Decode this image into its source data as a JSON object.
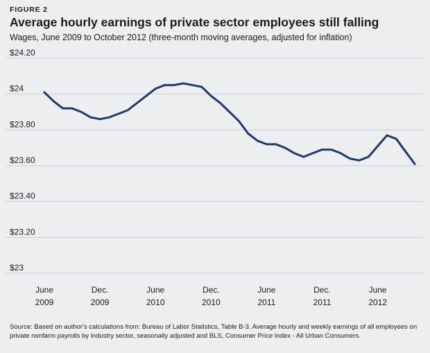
{
  "figure": {
    "label": "FIGURE 2",
    "source_note": "Source: Based on author's calculations from: Bureau of Labor Statistics, Table B-3. Average hourly and weekly earnings of all employees on private nonfarm payrolls by industry sector, seasonally adjusted and BLS, Consumer Price Index  - All Urban Consumers."
  },
  "colors": {
    "line": "#1f3a68",
    "grid": "#c8cbcf",
    "background": "#eceef0"
  },
  "chart_data": {
    "type": "line",
    "title": "Average hourly earnings of private sector employees still falling",
    "subtitle": "Wages, June 2009 to October 2012 (three-month moving averages, adjusted for inflation)",
    "xlabel": "",
    "ylabel": "",
    "ylim": [
      23,
      24.2
    ],
    "yticks": [
      {
        "value": 24.2,
        "label": "$24.20"
      },
      {
        "value": 24.0,
        "label": "$24"
      },
      {
        "value": 23.8,
        "label": "$23.80"
      },
      {
        "value": 23.6,
        "label": "$23.60"
      },
      {
        "value": 23.4,
        "label": "$23.40"
      },
      {
        "value": 23.2,
        "label": "$23.20"
      },
      {
        "value": 23.0,
        "label": "$23"
      }
    ],
    "grid": true,
    "xticks": [
      {
        "index": 0,
        "month": "June",
        "year": "2009"
      },
      {
        "index": 6,
        "month": "Dec.",
        "year": "2009"
      },
      {
        "index": 12,
        "month": "June",
        "year": "2010"
      },
      {
        "index": 18,
        "month": "Dec.",
        "year": "2010"
      },
      {
        "index": 24,
        "month": "June",
        "year": "2011"
      },
      {
        "index": 30,
        "month": "Dec.",
        "year": "2011"
      },
      {
        "index": 36,
        "month": "June",
        "year": "2012"
      }
    ],
    "series": [
      {
        "name": "Average hourly earnings",
        "values": [
          24.01,
          23.96,
          23.92,
          23.92,
          23.9,
          23.87,
          23.86,
          23.87,
          23.89,
          23.91,
          23.95,
          23.99,
          24.03,
          24.05,
          24.05,
          24.06,
          24.05,
          24.04,
          23.99,
          23.95,
          23.9,
          23.85,
          23.78,
          23.74,
          23.72,
          23.72,
          23.7,
          23.67,
          23.65,
          23.67,
          23.69,
          23.69,
          23.67,
          23.64,
          23.63,
          23.65,
          23.71,
          23.77,
          23.75,
          23.68,
          23.61
        ]
      }
    ]
  }
}
